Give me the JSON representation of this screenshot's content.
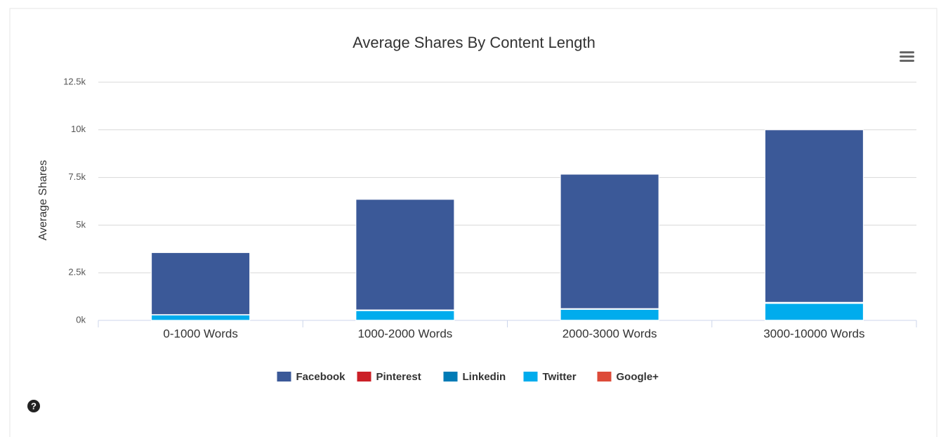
{
  "chart_data": {
    "type": "stacked-bar",
    "title": "Average Shares By Content Length",
    "y_label": "Average Shares",
    "categories": [
      "0-1000 Words",
      "1000-2000 Words",
      "2000-3000 Words",
      "3000-10000 Words"
    ],
    "series": [
      {
        "name": "Facebook",
        "color": "#3b5998",
        "values": [
          3250,
          5800,
          7050,
          9050
        ]
      },
      {
        "name": "Pinterest",
        "color": "#cb2027",
        "values": [
          10,
          20,
          20,
          30
        ]
      },
      {
        "name": "Linkedin",
        "color": "#007bb6",
        "values": [
          10,
          20,
          20,
          30
        ]
      },
      {
        "name": "Twitter",
        "color": "#00aced",
        "values": [
          280,
          500,
          570,
          880
        ]
      },
      {
        "name": "Google+",
        "color": "#dd4b39",
        "values": [
          5,
          10,
          10,
          10
        ]
      }
    ],
    "ylim": [
      0,
      12500
    ],
    "yticks": [
      {
        "value": 0,
        "label": "0k"
      },
      {
        "value": 2500,
        "label": "2.5k"
      },
      {
        "value": 5000,
        "label": "5k"
      },
      {
        "value": 7500,
        "label": "7.5k"
      },
      {
        "value": 10000,
        "label": "10k"
      },
      {
        "value": 12500,
        "label": "12.5k"
      }
    ],
    "grid": true,
    "legend": "bottom"
  }
}
